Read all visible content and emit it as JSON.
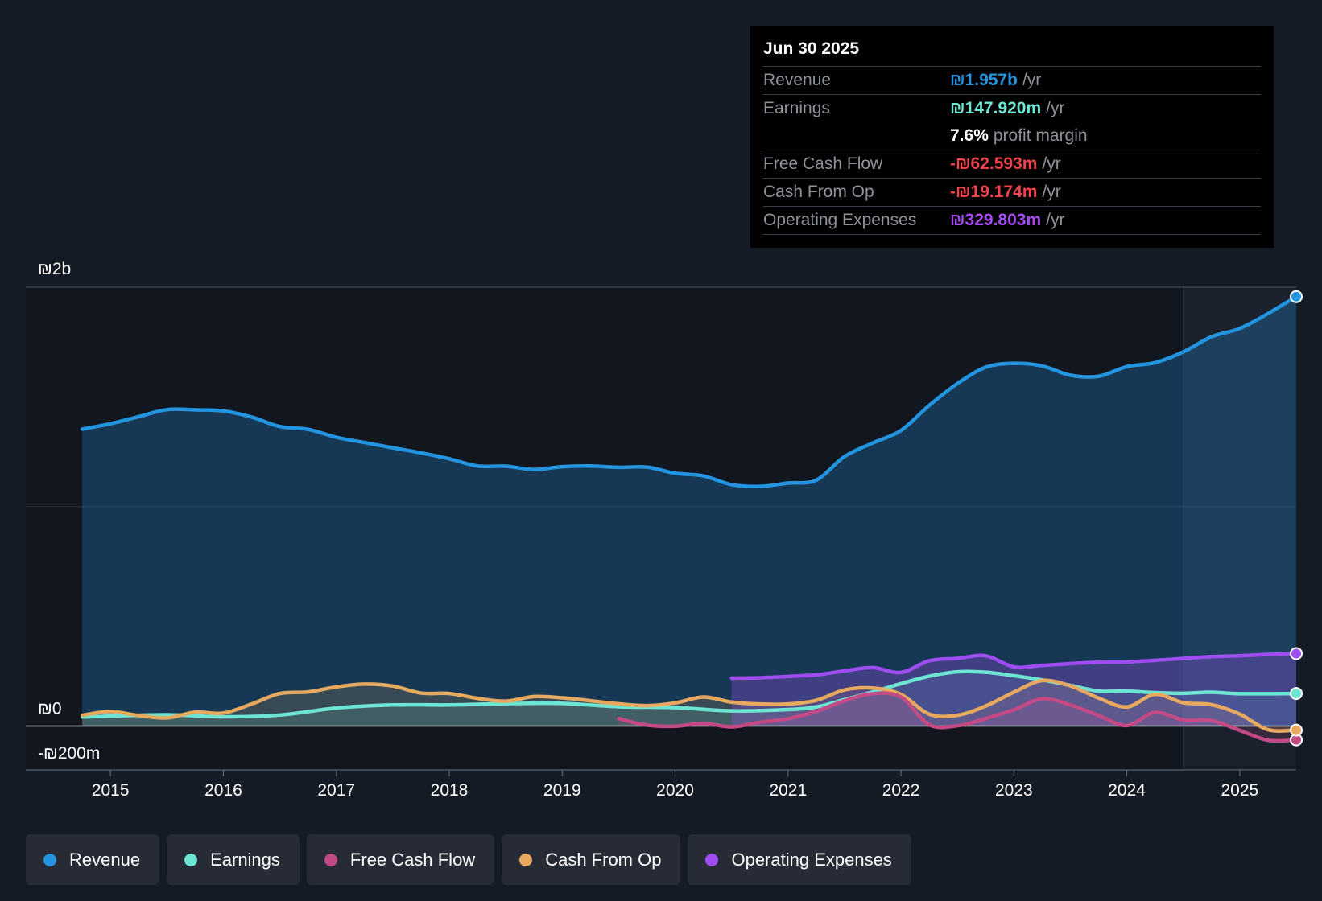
{
  "tooltip": {
    "date": "Jun 30 2025",
    "rows": [
      {
        "label": "Revenue",
        "value": "₪1.957b",
        "unit": "/yr",
        "color": "#2394df"
      },
      {
        "label": "Earnings",
        "value": "₪147.920m",
        "unit": "/yr",
        "color": "#6ee5d3"
      },
      {
        "label": "",
        "value": "7.6%",
        "unit": "profit margin",
        "color": "#ffffff"
      },
      {
        "label": "Free Cash Flow",
        "value": "-₪62.593m",
        "unit": "/yr",
        "color": "#f0424a"
      },
      {
        "label": "Cash From Op",
        "value": "-₪19.174m",
        "unit": "/yr",
        "color": "#f0424a"
      },
      {
        "label": "Operating Expenses",
        "value": "₪329.803m",
        "unit": "/yr",
        "color": "#a54af0"
      }
    ]
  },
  "legend": [
    {
      "label": "Revenue",
      "color": "#2394df"
    },
    {
      "label": "Earnings",
      "color": "#6ee5d3"
    },
    {
      "label": "Free Cash Flow",
      "color": "#c44a85"
    },
    {
      "label": "Cash From Op",
      "color": "#e7a960"
    },
    {
      "label": "Operating Expenses",
      "color": "#9e4ef0"
    }
  ],
  "chart_data": {
    "type": "line",
    "title": "",
    "xlabel": "",
    "ylabel": "",
    "ylim": [
      -200,
      2000
    ],
    "y_unit": "₪m",
    "y_tick_labels": [
      {
        "value": 2000,
        "label": "₪2b"
      },
      {
        "value": 0,
        "label": "₪0"
      },
      {
        "value": -200,
        "label": "-₪200m"
      }
    ],
    "xlim": [
      2014.25,
      2025.5
    ],
    "x_ticks": [
      2015,
      2016,
      2017,
      2018,
      2019,
      2020,
      2021,
      2022,
      2023,
      2024,
      2025
    ],
    "forecast_region_start": 2024.5,
    "series": [
      {
        "name": "Revenue",
        "color": "#2394df",
        "area": true,
        "points": [
          [
            2014.75,
            1353
          ],
          [
            2015.0,
            1378
          ],
          [
            2015.25,
            1410
          ],
          [
            2015.5,
            1442
          ],
          [
            2015.75,
            1441
          ],
          [
            2016.0,
            1436
          ],
          [
            2016.25,
            1408
          ],
          [
            2016.5,
            1365
          ],
          [
            2016.75,
            1352
          ],
          [
            2017.0,
            1316
          ],
          [
            2017.25,
            1292
          ],
          [
            2017.5,
            1268
          ],
          [
            2017.75,
            1245
          ],
          [
            2018.0,
            1218
          ],
          [
            2018.25,
            1185
          ],
          [
            2018.5,
            1184
          ],
          [
            2018.75,
            1169
          ],
          [
            2019.0,
            1182
          ],
          [
            2019.25,
            1185
          ],
          [
            2019.5,
            1179
          ],
          [
            2019.75,
            1180
          ],
          [
            2020.0,
            1152
          ],
          [
            2020.25,
            1140
          ],
          [
            2020.5,
            1100
          ],
          [
            2020.75,
            1092
          ],
          [
            2021.0,
            1107
          ],
          [
            2021.25,
            1121
          ],
          [
            2021.5,
            1228
          ],
          [
            2021.75,
            1290
          ],
          [
            2022.0,
            1347
          ],
          [
            2022.25,
            1461
          ],
          [
            2022.5,
            1561
          ],
          [
            2022.75,
            1635
          ],
          [
            2023.0,
            1653
          ],
          [
            2023.25,
            1641
          ],
          [
            2023.5,
            1599
          ],
          [
            2023.75,
            1594
          ],
          [
            2024.0,
            1638
          ],
          [
            2024.25,
            1656
          ],
          [
            2024.5,
            1705
          ],
          [
            2024.75,
            1774
          ],
          [
            2025.0,
            1812
          ],
          [
            2025.25,
            1880
          ],
          [
            2025.5,
            1957
          ]
        ]
      },
      {
        "name": "Earnings",
        "color": "#6ee5d3",
        "area": true,
        "points": [
          [
            2014.75,
            41
          ],
          [
            2015.0,
            45
          ],
          [
            2015.5,
            51
          ],
          [
            2016.0,
            42
          ],
          [
            2016.5,
            50
          ],
          [
            2017.0,
            82
          ],
          [
            2017.5,
            96
          ],
          [
            2018.0,
            96
          ],
          [
            2018.5,
            102
          ],
          [
            2019.0,
            103
          ],
          [
            2019.5,
            88
          ],
          [
            2020.0,
            84
          ],
          [
            2020.5,
            69
          ],
          [
            2021.0,
            75
          ],
          [
            2021.25,
            87
          ],
          [
            2021.5,
            120
          ],
          [
            2021.75,
            155
          ],
          [
            2022.0,
            193
          ],
          [
            2022.25,
            227
          ],
          [
            2022.5,
            247
          ],
          [
            2022.75,
            245
          ],
          [
            2023.0,
            229
          ],
          [
            2023.25,
            210
          ],
          [
            2023.5,
            185
          ],
          [
            2023.75,
            159
          ],
          [
            2024.0,
            159
          ],
          [
            2024.25,
            152
          ],
          [
            2024.5,
            149
          ],
          [
            2024.75,
            154
          ],
          [
            2025.0,
            147
          ],
          [
            2025.5,
            148
          ]
        ]
      },
      {
        "name": "Free Cash Flow",
        "color": "#c44a85",
        "area": true,
        "points": [
          [
            2019.5,
            34
          ],
          [
            2019.75,
            4
          ],
          [
            2020.0,
            -1
          ],
          [
            2020.25,
            12
          ],
          [
            2020.5,
            -4
          ],
          [
            2020.75,
            17
          ],
          [
            2021.0,
            33
          ],
          [
            2021.25,
            67
          ],
          [
            2021.5,
            115
          ],
          [
            2021.75,
            147
          ],
          [
            2022.0,
            132
          ],
          [
            2022.25,
            6
          ],
          [
            2022.5,
            1
          ],
          [
            2022.75,
            34
          ],
          [
            2023.0,
            74
          ],
          [
            2023.25,
            124
          ],
          [
            2023.5,
            96
          ],
          [
            2023.75,
            48
          ],
          [
            2024.0,
            2
          ],
          [
            2024.25,
            62
          ],
          [
            2024.5,
            28
          ],
          [
            2024.75,
            25
          ],
          [
            2025.0,
            -20
          ],
          [
            2025.25,
            -65
          ],
          [
            2025.5,
            -63
          ]
        ]
      },
      {
        "name": "Cash From Op",
        "color": "#e7a960",
        "area": true,
        "points": [
          [
            2014.75,
            49
          ],
          [
            2015.0,
            66
          ],
          [
            2015.25,
            48
          ],
          [
            2015.5,
            37
          ],
          [
            2015.75,
            63
          ],
          [
            2016.0,
            59
          ],
          [
            2016.25,
            100
          ],
          [
            2016.5,
            148
          ],
          [
            2016.75,
            155
          ],
          [
            2017.0,
            178
          ],
          [
            2017.25,
            191
          ],
          [
            2017.5,
            182
          ],
          [
            2017.75,
            150
          ],
          [
            2018.0,
            148
          ],
          [
            2018.25,
            126
          ],
          [
            2018.5,
            113
          ],
          [
            2018.75,
            134
          ],
          [
            2019.0,
            128
          ],
          [
            2019.25,
            115
          ],
          [
            2019.5,
            101
          ],
          [
            2019.75,
            93
          ],
          [
            2020.0,
            105
          ],
          [
            2020.25,
            132
          ],
          [
            2020.5,
            109
          ],
          [
            2020.75,
            100
          ],
          [
            2021.0,
            100
          ],
          [
            2021.25,
            117
          ],
          [
            2021.5,
            164
          ],
          [
            2021.75,
            173
          ],
          [
            2022.0,
            144
          ],
          [
            2022.25,
            54
          ],
          [
            2022.5,
            49
          ],
          [
            2022.75,
            91
          ],
          [
            2023.0,
            154
          ],
          [
            2023.25,
            207
          ],
          [
            2023.5,
            183
          ],
          [
            2023.75,
            127
          ],
          [
            2024.0,
            87
          ],
          [
            2024.25,
            144
          ],
          [
            2024.5,
            106
          ],
          [
            2024.75,
            97
          ],
          [
            2025.0,
            54
          ],
          [
            2025.25,
            -17
          ],
          [
            2025.5,
            -19
          ]
        ]
      },
      {
        "name": "Operating Expenses",
        "color": "#9e4ef0",
        "area": true,
        "points": [
          [
            2020.5,
            218
          ],
          [
            2020.75,
            220
          ],
          [
            2021.0,
            226
          ],
          [
            2021.25,
            233
          ],
          [
            2021.5,
            251
          ],
          [
            2021.75,
            266
          ],
          [
            2022.0,
            244
          ],
          [
            2022.25,
            297
          ],
          [
            2022.5,
            308
          ],
          [
            2022.75,
            320
          ],
          [
            2023.0,
            269
          ],
          [
            2023.25,
            276
          ],
          [
            2023.5,
            284
          ],
          [
            2023.75,
            291
          ],
          [
            2024.0,
            292
          ],
          [
            2024.25,
            299
          ],
          [
            2024.5,
            308
          ],
          [
            2024.75,
            316
          ],
          [
            2025.0,
            320
          ],
          [
            2025.25,
            326
          ],
          [
            2025.5,
            330
          ]
        ]
      }
    ]
  }
}
